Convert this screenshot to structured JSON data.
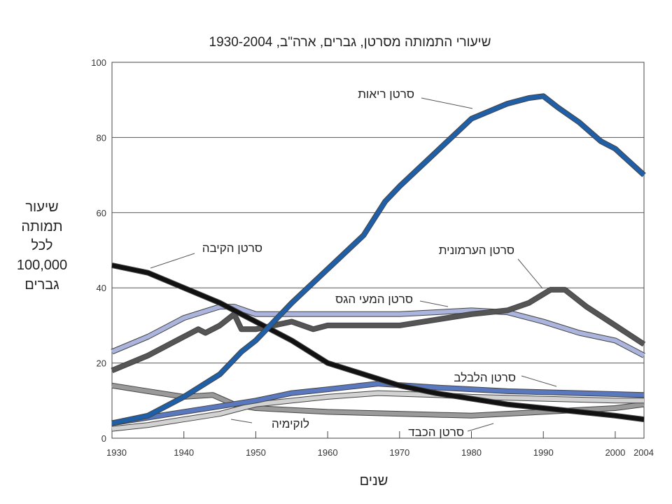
{
  "chart_data": {
    "type": "line",
    "title": "שיעורי התמותה מסרטן, גברים, ארה\"ב, 1930-2004",
    "xlabel": "שנים",
    "ylabel_lines": [
      "שיעור",
      "תמותה",
      "לכל",
      "100,000",
      "גברים"
    ],
    "xlim": [
      1930,
      2004
    ],
    "ylim": [
      0,
      100
    ],
    "xticks": [
      1930,
      1940,
      1950,
      1960,
      1970,
      1980,
      1990,
      2000,
      2004
    ],
    "yticks": [
      0,
      20,
      40,
      60,
      80,
      100
    ],
    "grid": "horizontal",
    "series": [
      {
        "name": "סרטן הכבד",
        "color": "#9a9a9a",
        "x": [
          1930,
          1935,
          1940,
          1944,
          1947,
          1950,
          1955,
          1960,
          1970,
          1980,
          1990,
          2000,
          2004
        ],
        "y": [
          14,
          12.5,
          11,
          11.5,
          9,
          8,
          7.5,
          7,
          6.5,
          6,
          7,
          8,
          9
        ]
      },
      {
        "name": "לוקימיה",
        "color": "#d2d2d2",
        "x": [
          1930,
          1935,
          1940,
          1945,
          1950,
          1955,
          1960,
          1967,
          1975,
          1980,
          1990,
          2000,
          2004
        ],
        "y": [
          2.5,
          3.5,
          5,
          6.5,
          9,
          10,
          11,
          12,
          11.5,
          11,
          10.5,
          10,
          10
        ]
      },
      {
        "name": "סרטן הלבלב",
        "color": "#5a78c0",
        "x": [
          1930,
          1935,
          1940,
          1945,
          1950,
          1955,
          1960,
          1967,
          1975,
          1985,
          1995,
          2004
        ],
        "y": [
          4,
          5.5,
          7,
          8.5,
          10,
          12,
          13,
          14.5,
          13.5,
          12.5,
          12,
          11.5
        ]
      },
      {
        "name": "סרטן המעי הגס",
        "color": "#aab4dc",
        "x": [
          1930,
          1935,
          1940,
          1945,
          1947,
          1950,
          1955,
          1960,
          1970,
          1980,
          1985,
          1990,
          1995,
          2000,
          2004
        ],
        "y": [
          23,
          27,
          32,
          35,
          35,
          33,
          33,
          33,
          33,
          34,
          33.5,
          31,
          28,
          26,
          22
        ]
      },
      {
        "name": "סרטן הערמונית",
        "color": "#555555",
        "x": [
          1930,
          1935,
          1940,
          1942,
          1943,
          1945,
          1947,
          1948,
          1950,
          1955,
          1958,
          1960,
          1970,
          1980,
          1985,
          1988,
          1991,
          1993,
          1996,
          2000,
          2004
        ],
        "y": [
          18,
          22,
          27,
          29,
          28,
          30,
          33,
          29,
          29,
          31,
          29,
          30,
          30,
          33,
          34,
          36,
          39.5,
          39.5,
          35,
          30,
          25
        ]
      },
      {
        "name": "סרטן הקיבה",
        "color": "#111111",
        "x": [
          1930,
          1935,
          1940,
          1945,
          1947,
          1950,
          1955,
          1960,
          1965,
          1970,
          1975,
          1980,
          1985,
          1990,
          1995,
          2000,
          2004
        ],
        "y": [
          46,
          44,
          40,
          36,
          34,
          31,
          26,
          20,
          17,
          14,
          12,
          10.5,
          9,
          8,
          7,
          6,
          5
        ]
      },
      {
        "name": "סרטן ריאות",
        "color": "#1f5fa8",
        "x": [
          1930,
          1935,
          1940,
          1945,
          1948,
          1950,
          1955,
          1960,
          1965,
          1968,
          1970,
          1975,
          1980,
          1985,
          1988,
          1990,
          1992,
          1995,
          1998,
          2000,
          2004
        ],
        "y": [
          4,
          6,
          11,
          17,
          23,
          26,
          36,
          45,
          54,
          63,
          67,
          76,
          85,
          89,
          90.5,
          91,
          88,
          84,
          79,
          77,
          70
        ]
      }
    ]
  }
}
